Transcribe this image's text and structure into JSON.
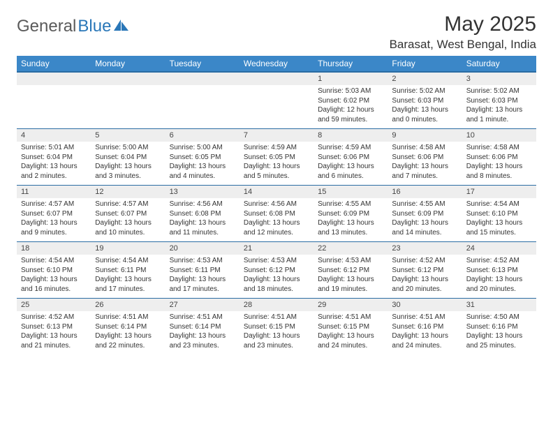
{
  "brand": {
    "part1": "General",
    "part2": "Blue"
  },
  "title": "May 2025",
  "location": "Barasat, West Bengal, India",
  "colors": {
    "header_bg": "#3b87c8",
    "header_border": "#2a6ca3",
    "daynum_bg": "#eeeeee",
    "text": "#333333",
    "logo_gray": "#5a5a5a",
    "logo_blue": "#2a77b8"
  },
  "weekdays": [
    "Sunday",
    "Monday",
    "Tuesday",
    "Wednesday",
    "Thursday",
    "Friday",
    "Saturday"
  ],
  "weeks": [
    {
      "nums": [
        "",
        "",
        "",
        "",
        "1",
        "2",
        "3"
      ],
      "info": [
        "",
        "",
        "",
        "",
        "Sunrise: 5:03 AM\nSunset: 6:02 PM\nDaylight: 12 hours and 59 minutes.",
        "Sunrise: 5:02 AM\nSunset: 6:03 PM\nDaylight: 13 hours and 0 minutes.",
        "Sunrise: 5:02 AM\nSunset: 6:03 PM\nDaylight: 13 hours and 1 minute."
      ]
    },
    {
      "nums": [
        "4",
        "5",
        "6",
        "7",
        "8",
        "9",
        "10"
      ],
      "info": [
        "Sunrise: 5:01 AM\nSunset: 6:04 PM\nDaylight: 13 hours and 2 minutes.",
        "Sunrise: 5:00 AM\nSunset: 6:04 PM\nDaylight: 13 hours and 3 minutes.",
        "Sunrise: 5:00 AM\nSunset: 6:05 PM\nDaylight: 13 hours and 4 minutes.",
        "Sunrise: 4:59 AM\nSunset: 6:05 PM\nDaylight: 13 hours and 5 minutes.",
        "Sunrise: 4:59 AM\nSunset: 6:06 PM\nDaylight: 13 hours and 6 minutes.",
        "Sunrise: 4:58 AM\nSunset: 6:06 PM\nDaylight: 13 hours and 7 minutes.",
        "Sunrise: 4:58 AM\nSunset: 6:06 PM\nDaylight: 13 hours and 8 minutes."
      ]
    },
    {
      "nums": [
        "11",
        "12",
        "13",
        "14",
        "15",
        "16",
        "17"
      ],
      "info": [
        "Sunrise: 4:57 AM\nSunset: 6:07 PM\nDaylight: 13 hours and 9 minutes.",
        "Sunrise: 4:57 AM\nSunset: 6:07 PM\nDaylight: 13 hours and 10 minutes.",
        "Sunrise: 4:56 AM\nSunset: 6:08 PM\nDaylight: 13 hours and 11 minutes.",
        "Sunrise: 4:56 AM\nSunset: 6:08 PM\nDaylight: 13 hours and 12 minutes.",
        "Sunrise: 4:55 AM\nSunset: 6:09 PM\nDaylight: 13 hours and 13 minutes.",
        "Sunrise: 4:55 AM\nSunset: 6:09 PM\nDaylight: 13 hours and 14 minutes.",
        "Sunrise: 4:54 AM\nSunset: 6:10 PM\nDaylight: 13 hours and 15 minutes."
      ]
    },
    {
      "nums": [
        "18",
        "19",
        "20",
        "21",
        "22",
        "23",
        "24"
      ],
      "info": [
        "Sunrise: 4:54 AM\nSunset: 6:10 PM\nDaylight: 13 hours and 16 minutes.",
        "Sunrise: 4:54 AM\nSunset: 6:11 PM\nDaylight: 13 hours and 17 minutes.",
        "Sunrise: 4:53 AM\nSunset: 6:11 PM\nDaylight: 13 hours and 17 minutes.",
        "Sunrise: 4:53 AM\nSunset: 6:12 PM\nDaylight: 13 hours and 18 minutes.",
        "Sunrise: 4:53 AM\nSunset: 6:12 PM\nDaylight: 13 hours and 19 minutes.",
        "Sunrise: 4:52 AM\nSunset: 6:12 PM\nDaylight: 13 hours and 20 minutes.",
        "Sunrise: 4:52 AM\nSunset: 6:13 PM\nDaylight: 13 hours and 20 minutes."
      ]
    },
    {
      "nums": [
        "25",
        "26",
        "27",
        "28",
        "29",
        "30",
        "31"
      ],
      "info": [
        "Sunrise: 4:52 AM\nSunset: 6:13 PM\nDaylight: 13 hours and 21 minutes.",
        "Sunrise: 4:51 AM\nSunset: 6:14 PM\nDaylight: 13 hours and 22 minutes.",
        "Sunrise: 4:51 AM\nSunset: 6:14 PM\nDaylight: 13 hours and 23 minutes.",
        "Sunrise: 4:51 AM\nSunset: 6:15 PM\nDaylight: 13 hours and 23 minutes.",
        "Sunrise: 4:51 AM\nSunset: 6:15 PM\nDaylight: 13 hours and 24 minutes.",
        "Sunrise: 4:51 AM\nSunset: 6:16 PM\nDaylight: 13 hours and 24 minutes.",
        "Sunrise: 4:50 AM\nSunset: 6:16 PM\nDaylight: 13 hours and 25 minutes."
      ]
    }
  ]
}
